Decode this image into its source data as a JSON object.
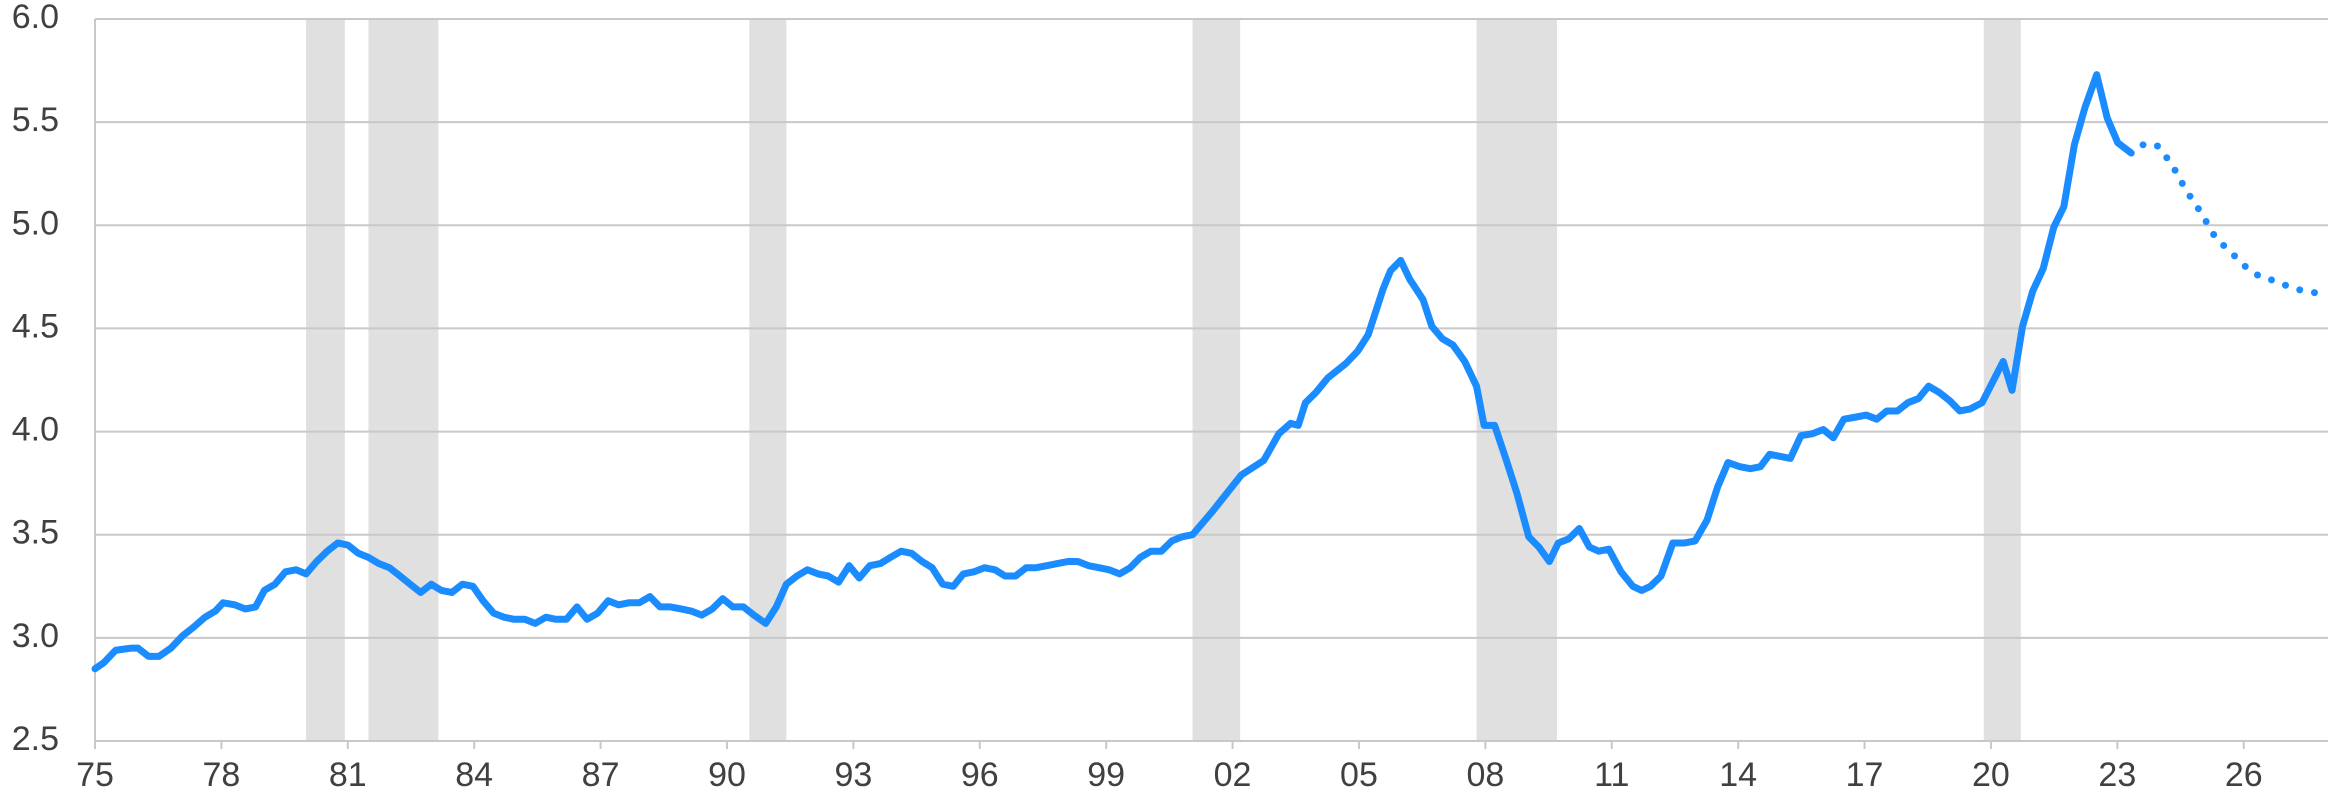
{
  "chart_data": {
    "type": "line",
    "xlim": [
      1975,
      2028
    ],
    "ylim": [
      2.5,
      6.0
    ],
    "xticks": [
      {
        "value": 1975,
        "label": "75"
      },
      {
        "value": 1978,
        "label": "78"
      },
      {
        "value": 1981,
        "label": "81"
      },
      {
        "value": 1984,
        "label": "84"
      },
      {
        "value": 1987,
        "label": "87"
      },
      {
        "value": 1990,
        "label": "90"
      },
      {
        "value": 1993,
        "label": "93"
      },
      {
        "value": 1996,
        "label": "96"
      },
      {
        "value": 1999,
        "label": "99"
      },
      {
        "value": 2002,
        "label": "02"
      },
      {
        "value": 2005,
        "label": "05"
      },
      {
        "value": 2008,
        "label": "08"
      },
      {
        "value": 2011,
        "label": "11"
      },
      {
        "value": 2014,
        "label": "14"
      },
      {
        "value": 2017,
        "label": "17"
      },
      {
        "value": 2020,
        "label": "20"
      },
      {
        "value": 2023,
        "label": "23"
      },
      {
        "value": 2026,
        "label": "26"
      }
    ],
    "yticks": [
      2.5,
      {
        "value": 3,
        "label": "3.0"
      },
      3.5,
      {
        "value": 4,
        "label": "4.0"
      },
      4.5,
      {
        "value": 5,
        "label": "5.0"
      },
      5.5,
      {
        "value": 6,
        "label": "6.0"
      }
    ],
    "grid": true,
    "shaded_spans": [
      [
        1980.01,
        1980.93
      ],
      [
        1981.49,
        1983.15
      ],
      [
        1990.53,
        1991.41
      ],
      [
        2001.05,
        2002.18
      ],
      [
        2007.79,
        2009.7
      ],
      [
        2019.83,
        2020.71
      ]
    ],
    "shade_color": "#e0e0e0",
    "series": [
      {
        "color": "#1a8cff",
        "line_style": "solid",
        "x": [
          1975.0,
          1975.21,
          1975.49,
          1975.85,
          1976.02,
          1976.27,
          1976.52,
          1976.8,
          1977.08,
          1977.33,
          1977.61,
          1977.86,
          1978.04,
          1978.32,
          1978.57,
          1978.81,
          1979.02,
          1979.27,
          1979.52,
          1979.77,
          1980.01,
          1980.26,
          1980.51,
          1980.76,
          1981.0,
          1981.25,
          1981.49,
          1981.74,
          1981.99,
          1982.24,
          1982.48,
          1982.73,
          1982.98,
          1983.22,
          1983.47,
          1983.72,
          1983.97,
          1984.21,
          1984.46,
          1984.71,
          1984.95,
          1985.2,
          1985.45,
          1985.7,
          1985.94,
          1986.19,
          1986.44,
          1986.68,
          1986.93,
          1987.18,
          1987.43,
          1987.67,
          1987.92,
          1988.17,
          1988.41,
          1988.66,
          1988.91,
          1989.15,
          1989.4,
          1989.65,
          1989.9,
          1990.14,
          1990.39,
          1990.64,
          1990.92,
          1991.17,
          1991.41,
          1991.66,
          1991.91,
          1992.16,
          1992.4,
          1992.65,
          1992.9,
          1993.14,
          1993.39,
          1993.64,
          1993.88,
          1994.13,
          1994.38,
          1994.63,
          1994.87,
          1995.12,
          1995.37,
          1995.61,
          1995.86,
          1996.11,
          1996.36,
          1996.6,
          1996.85,
          1997.1,
          1997.34,
          1997.59,
          1997.84,
          1998.09,
          1998.33,
          1998.58,
          1998.83,
          1999.07,
          1999.32,
          1999.57,
          1999.81,
          2000.06,
          2000.31,
          2000.56,
          2000.8,
          2001.05,
          2001.51,
          2001.86,
          2002.21,
          2002.74,
          2003.1,
          2003.38,
          2003.56,
          2003.73,
          2003.98,
          2004.26,
          2004.69,
          2004.97,
          2005.22,
          2005.57,
          2005.75,
          2005.99,
          2006.2,
          2006.52,
          2006.73,
          2006.98,
          2007.23,
          2007.51,
          2007.79,
          2007.97,
          2008.22,
          2008.5,
          2008.75,
          2009.03,
          2009.27,
          2009.52,
          2009.73,
          2009.98,
          2010.23,
          2010.47,
          2010.69,
          2010.93,
          2011.22,
          2011.5,
          2011.71,
          2011.92,
          2012.17,
          2012.45,
          2012.73,
          2012.98,
          2013.26,
          2013.51,
          2013.76,
          2014.04,
          2014.29,
          2014.53,
          2014.75,
          2014.99,
          2015.24,
          2015.49,
          2015.77,
          2016.02,
          2016.26,
          2016.51,
          2016.79,
          2017.04,
          2017.29,
          2017.53,
          2017.78,
          2018.03,
          2018.28,
          2018.52,
          2018.77,
          2019.02,
          2019.26,
          2019.51,
          2019.79,
          2020.04,
          2020.29,
          2020.5,
          2020.75,
          2020.99,
          2021.24,
          2021.49,
          2021.73,
          2021.98,
          2022.23,
          2022.51,
          2022.76,
          2023.01,
          2023.33
        ],
        "values": [
          2.85,
          2.88,
          2.94,
          2.95,
          2.95,
          2.91,
          2.91,
          2.95,
          3.01,
          3.05,
          3.1,
          3.13,
          3.17,
          3.16,
          3.14,
          3.15,
          3.23,
          3.26,
          3.32,
          3.33,
          3.31,
          3.37,
          3.42,
          3.46,
          3.45,
          3.41,
          3.39,
          3.36,
          3.34,
          3.3,
          3.26,
          3.22,
          3.26,
          3.23,
          3.22,
          3.26,
          3.25,
          3.18,
          3.12,
          3.1,
          3.09,
          3.09,
          3.07,
          3.1,
          3.09,
          3.09,
          3.15,
          3.09,
          3.12,
          3.18,
          3.16,
          3.17,
          3.17,
          3.2,
          3.15,
          3.15,
          3.14,
          3.13,
          3.11,
          3.14,
          3.19,
          3.15,
          3.15,
          3.11,
          3.07,
          3.15,
          3.26,
          3.3,
          3.33,
          3.31,
          3.3,
          3.27,
          3.35,
          3.29,
          3.35,
          3.36,
          3.39,
          3.42,
          3.41,
          3.37,
          3.34,
          3.26,
          3.25,
          3.31,
          3.32,
          3.34,
          3.33,
          3.3,
          3.3,
          3.34,
          3.34,
          3.35,
          3.36,
          3.37,
          3.37,
          3.35,
          3.34,
          3.33,
          3.31,
          3.34,
          3.39,
          3.42,
          3.42,
          3.47,
          3.49,
          3.5,
          3.61,
          3.7,
          3.79,
          3.86,
          3.99,
          4.04,
          4.03,
          4.14,
          4.19,
          4.26,
          4.33,
          4.39,
          4.47,
          4.69,
          4.78,
          4.83,
          4.74,
          4.64,
          4.51,
          4.45,
          4.42,
          4.34,
          4.22,
          4.03,
          4.03,
          3.86,
          3.7,
          3.49,
          3.44,
          3.37,
          3.46,
          3.48,
          3.53,
          3.44,
          3.42,
          3.43,
          3.32,
          3.25,
          3.23,
          3.25,
          3.3,
          3.46,
          3.46,
          3.47,
          3.57,
          3.73,
          3.85,
          3.83,
          3.82,
          3.83,
          3.89,
          3.88,
          3.87,
          3.98,
          3.99,
          4.01,
          3.97,
          4.06,
          4.07,
          4.08,
          4.06,
          4.1,
          4.1,
          4.14,
          4.16,
          4.22,
          4.19,
          4.15,
          4.1,
          4.11,
          4.14,
          4.24,
          4.34,
          4.2,
          4.51,
          4.68,
          4.79,
          4.99,
          5.09,
          5.39,
          5.57,
          5.73,
          5.52,
          5.4,
          5.35
        ]
      },
      {
        "color": "#1a8cff",
        "line_style": "dotted",
        "x": [
          2023.61,
          2023.93,
          2024.28,
          2024.63,
          2024.99,
          2025.33,
          2025.69,
          2026.04,
          2026.39,
          2026.75,
          2027.1,
          2027.45,
          2027.8,
          2028.0
        ],
        "values": [
          5.39,
          5.39,
          5.3,
          5.17,
          5.06,
          4.94,
          4.87,
          4.8,
          4.75,
          4.73,
          4.7,
          4.68,
          4.67,
          4.66
        ]
      }
    ]
  }
}
